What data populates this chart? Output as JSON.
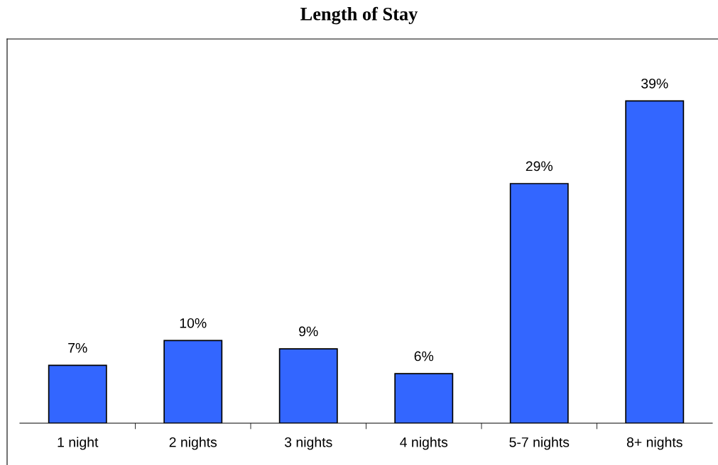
{
  "chart_data": {
    "type": "bar",
    "title": "Length of Stay",
    "categories": [
      "1 night",
      "2 nights",
      "3 nights",
      "4 nights",
      "5-7 nights",
      "8+ nights"
    ],
    "values": [
      7,
      10,
      9,
      6,
      29,
      39
    ],
    "value_labels": [
      "7%",
      "10%",
      "9%",
      "6%",
      "29%",
      "39%"
    ],
    "color": "#3366ff",
    "grid": false,
    "legend": false
  }
}
